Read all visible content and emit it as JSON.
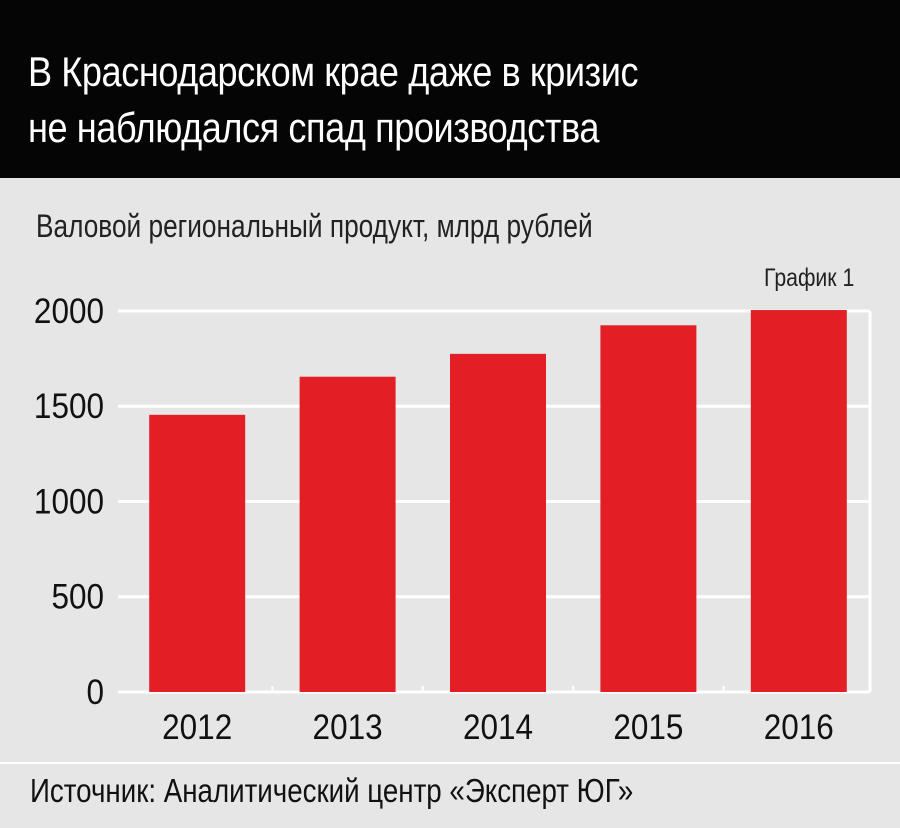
{
  "header": {
    "title_line_1": "В Краснодарском крае даже в кризис",
    "title_line_2": "не наблюдался спад производства"
  },
  "subtitle": "Валовой региональный продукт, млрд рублей",
  "chart_label": "График 1",
  "source": "Источник: Аналитический центр «Эксперт ЮГ»",
  "colors": {
    "bar": "#e31e24",
    "header_bg": "#050505",
    "panel_bg": "#e6e6e6",
    "grid": "#ffffff"
  },
  "chart_data": {
    "type": "bar",
    "categories": [
      "2012",
      "2013",
      "2014",
      "2015",
      "2016"
    ],
    "values": [
      1455,
      1655,
      1775,
      1925,
      2005
    ],
    "yticks": [
      0,
      500,
      1000,
      1500,
      2000
    ],
    "ylim": [
      0,
      2000
    ],
    "grid": true,
    "title": "В Краснодарском крае даже в кризис не наблюдался спад производства",
    "ylabel": "Валовой региональный продукт, млрд рублей",
    "xlabel": ""
  }
}
